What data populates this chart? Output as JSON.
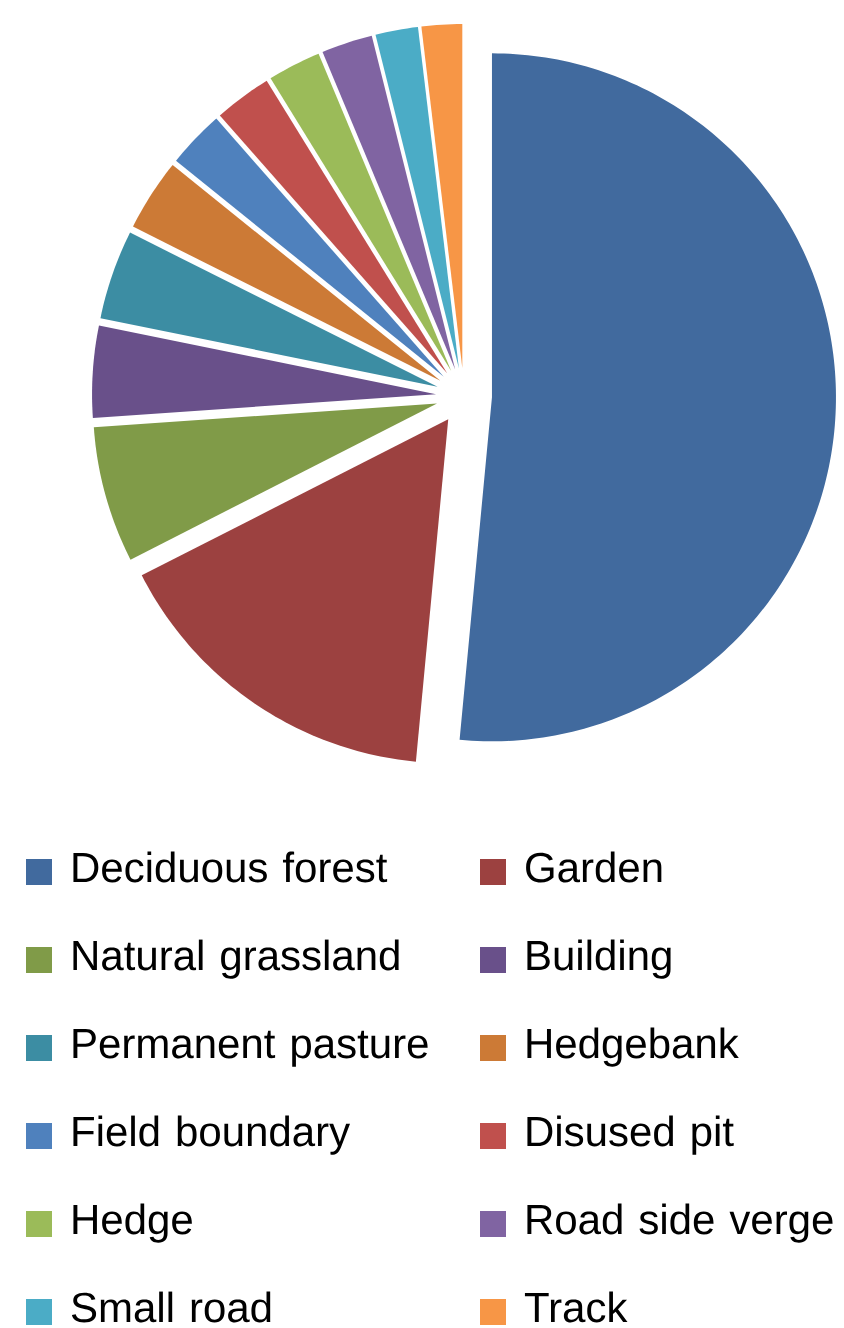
{
  "chart_data": {
    "type": "pie",
    "categories": [
      "Deciduous forest",
      "Garden",
      "Natural grassland",
      "Building",
      "Permanent pasture",
      "Hedgebank",
      "Field boundary",
      "Disused pit",
      "Hedge",
      "Road side verge",
      "Small road",
      "Track"
    ],
    "values": [
      51.5,
      16.0,
      6.4,
      4.3,
      4.2,
      3.4,
      2.7,
      2.7,
      2.5,
      2.4,
      2.0,
      1.9
    ],
    "colors": [
      "#416a9e",
      "#9c4140",
      "#809b48",
      "#69508a",
      "#3c8da3",
      "#cc7a36",
      "#4f81bd",
      "#c0504d",
      "#9bbb59",
      "#8064a2",
      "#4bacc6",
      "#f79646"
    ],
    "legend": "bottom"
  }
}
